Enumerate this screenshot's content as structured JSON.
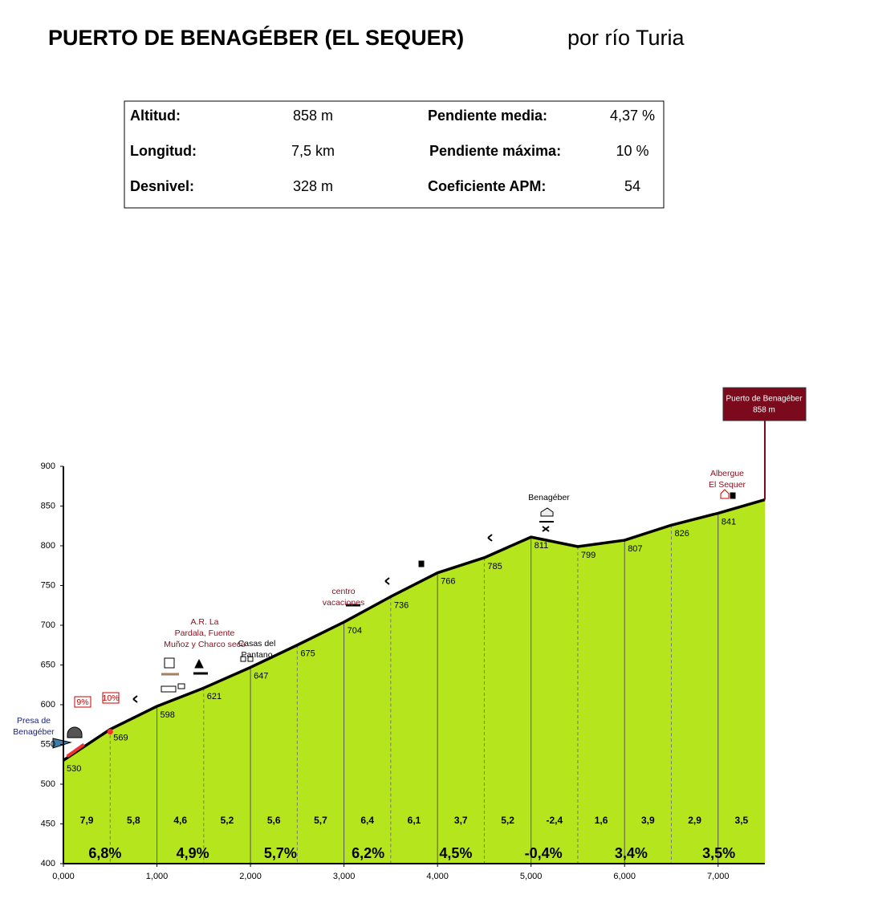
{
  "title": "PUERTO DE BENAGÉBER (EL SEQUER)",
  "subtitle": "por  río Turia",
  "stats": [
    [
      "Altitud:",
      "858 m",
      "Pendiente media:",
      "4,37 %"
    ],
    [
      "Longitud:",
      "7,5 km",
      "Pendiente máxima:",
      "10 %"
    ],
    [
      "Desnivel:",
      "328 m",
      "Coeficiente APM:",
      "54"
    ]
  ],
  "chart_data": {
    "type": "line",
    "x": [
      0,
      0.5,
      1,
      1.5,
      2,
      2.5,
      3,
      3.5,
      4,
      4.5,
      5,
      5.5,
      6,
      6.5,
      7
    ],
    "values": [
      530,
      569,
      598,
      621,
      647,
      675,
      704,
      736,
      766,
      785,
      811,
      799,
      807,
      826,
      841
    ],
    "color": "#b5e61d",
    "summit": {
      "name": "Puerto de Benagéber",
      "x": 7.5,
      "value": 858,
      "value_label": "858 m"
    },
    "segment_gradients": {
      "values": [
        7.9,
        5.8,
        4.6,
        5.2,
        5.6,
        5.7,
        6.4,
        6.1,
        3.7,
        5.2,
        -2.4,
        1.6,
        3.9,
        2.9,
        3.5
      ],
      "value_labels": [
        "7,9",
        "5,8",
        "4,6",
        "5,2",
        "5,6",
        "5,7",
        "6,4",
        "6,1",
        "3,7",
        "5,2",
        "-2,4",
        "1,6",
        "3,9",
        "2,9",
        "3,5"
      ]
    },
    "km_gradients": {
      "values": [
        6.8,
        4.9,
        5.7,
        6.2,
        4.5,
        -0.4,
        3.4,
        3.5
      ],
      "value_labels": [
        "6,8%",
        "4,9%",
        "5,7%",
        "6,2%",
        "4,5%",
        "-0,4%",
        "3,4%",
        "3,5%"
      ]
    },
    "annotations": [
      "Presa de Benagéber",
      "9%",
      "10%",
      "A.R. La Pardala, Fuente Muñoz y Charco seco",
      "Casas del Pantano",
      "centro vacaciones",
      "Benagéber",
      "Albergue El Sequer"
    ],
    "xlim": [
      0,
      7.5
    ],
    "xticks": [
      {
        "value": 0,
        "label": "0,000"
      },
      {
        "value": 1,
        "label": "1,000"
      },
      {
        "value": 2,
        "label": "2,000"
      },
      {
        "value": 3,
        "label": "3,000"
      },
      {
        "value": 4,
        "label": "4,000"
      },
      {
        "value": 5,
        "label": "5,000"
      },
      {
        "value": 6,
        "label": "6,000"
      },
      {
        "value": 7,
        "label": "7,000"
      }
    ],
    "ylim": [
      400,
      900
    ],
    "yticks": [
      400,
      450,
      500,
      550,
      600,
      650,
      700,
      750,
      800,
      850,
      900
    ]
  }
}
